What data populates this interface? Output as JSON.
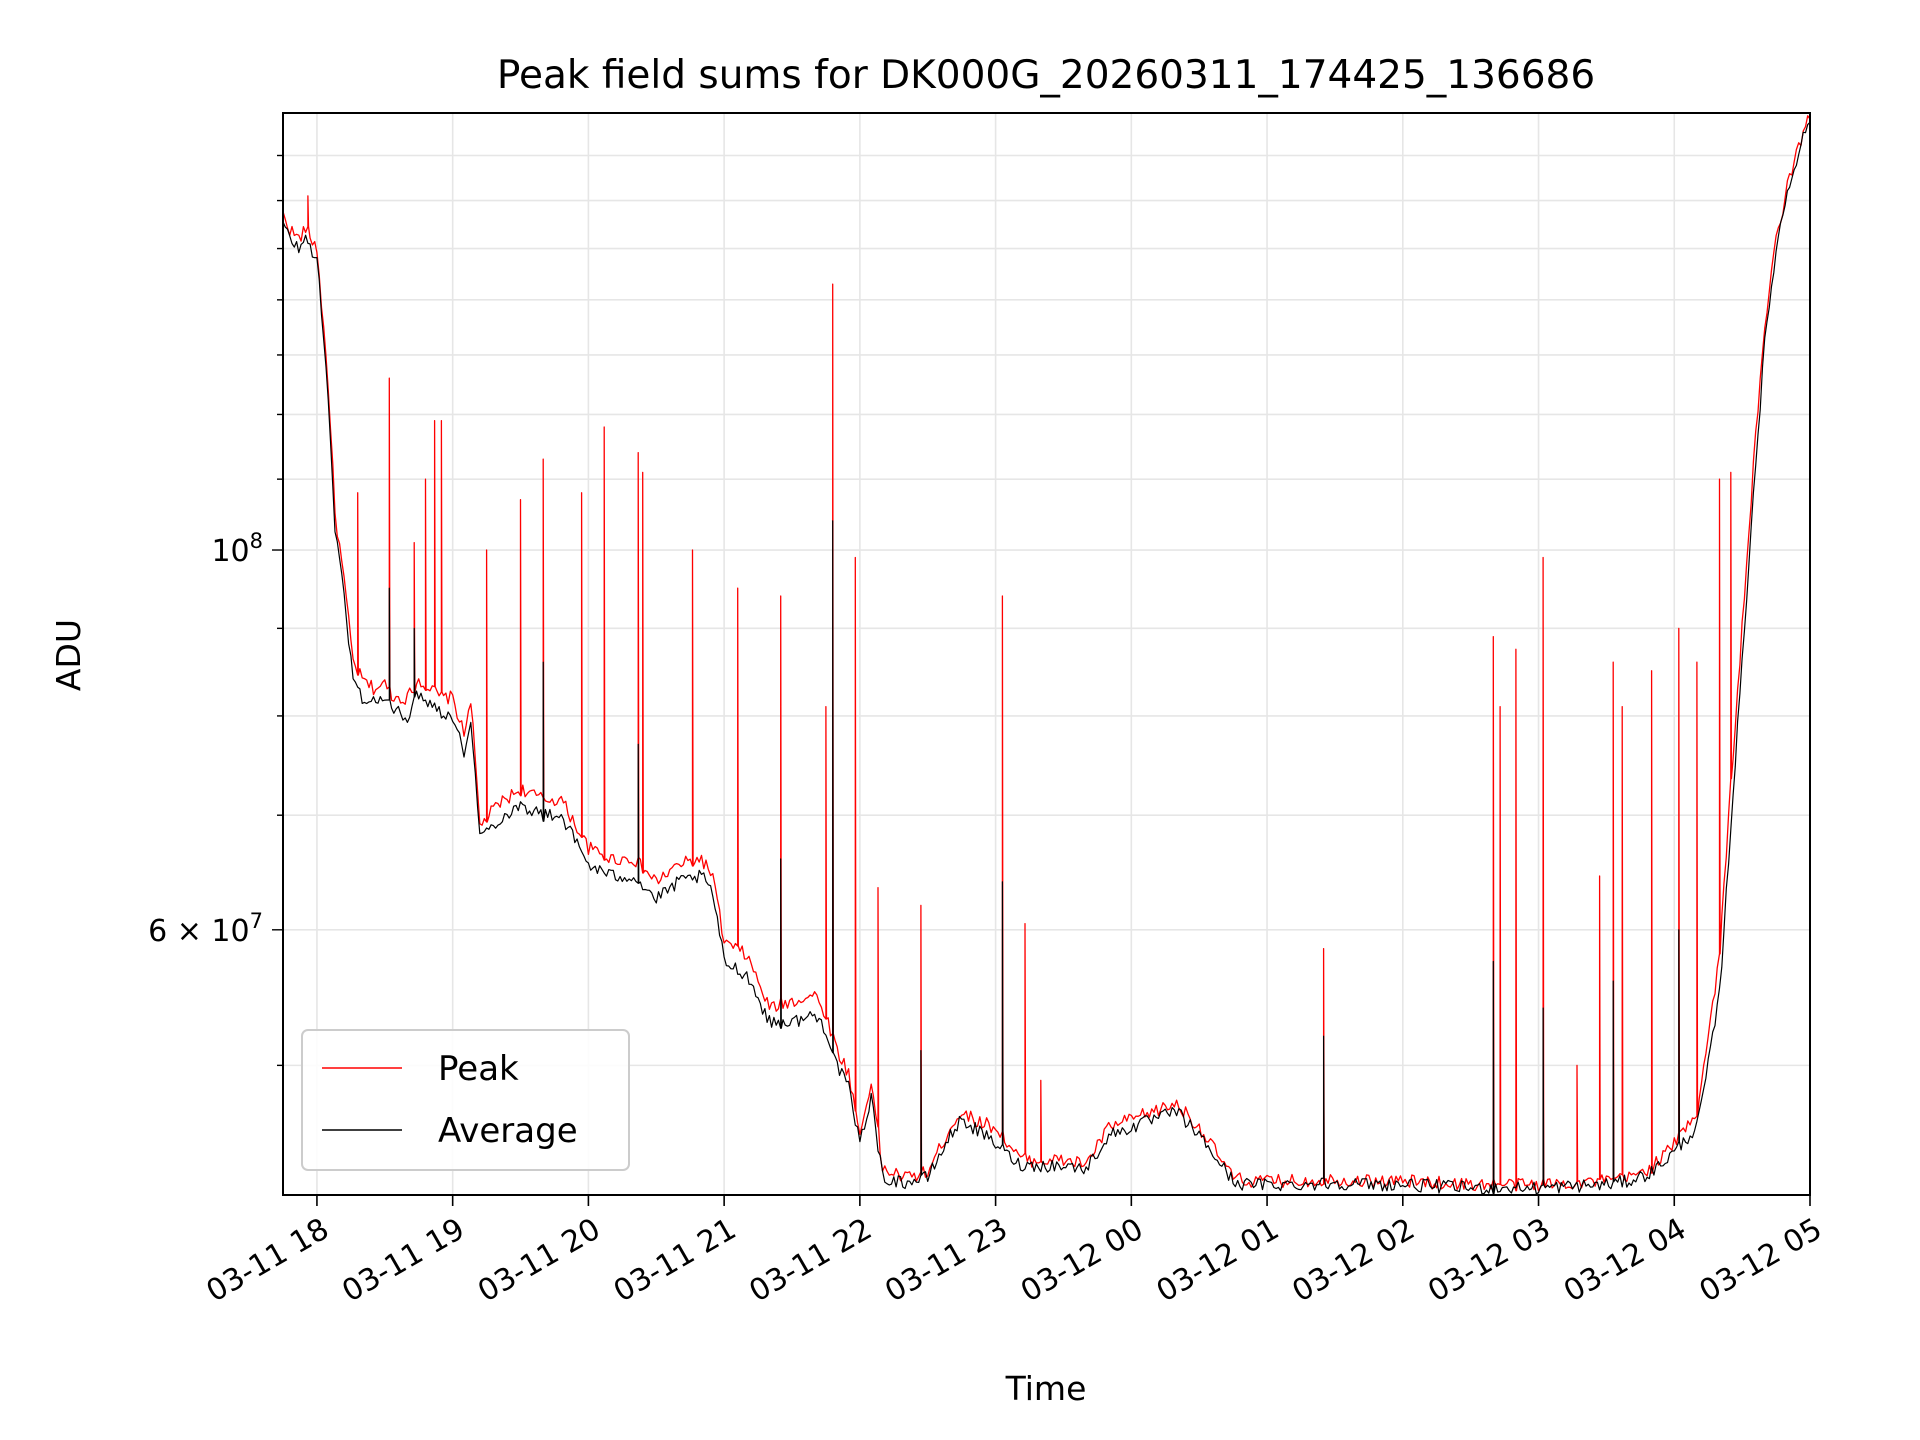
{
  "chart_data": {
    "type": "line",
    "title": "Peak field sums for DK000G_20260311_174425_136686",
    "xlabel": "Time",
    "ylabel": "ADU",
    "yscale": "log",
    "grid": true,
    "legend_position": "lower-left",
    "x_range": [
      "03-11 17:45",
      "03-12 05:00"
    ],
    "y_range": [
      42000000,
      180000000
    ],
    "x_ticks": [
      "03-11 18",
      "03-11 19",
      "03-11 20",
      "03-11 21",
      "03-11 22",
      "03-11 23",
      "03-12 00",
      "03-12 01",
      "03-12 02",
      "03-12 03",
      "03-12 04",
      "03-12 05"
    ],
    "y_ticks": [
      {
        "value": 100000000,
        "base": "10",
        "exp": "8"
      },
      {
        "value": 60000000,
        "mantissa": "6",
        "times": "×",
        "base": "10",
        "exp": "7"
      }
    ],
    "series": [
      {
        "name": "Peak",
        "color": "#ff0000",
        "x": [
          "03-11 17:45",
          "03-11 17:48",
          "03-11 17:52",
          "03-11 17:55",
          "03-11 18:00",
          "03-11 18:05",
          "03-11 18:08",
          "03-11 18:12",
          "03-11 18:16",
          "03-11 18:20",
          "03-11 18:25",
          "03-11 18:30",
          "03-11 18:34",
          "03-11 18:40",
          "03-11 18:45",
          "03-11 18:50",
          "03-11 18:55",
          "03-11 19:00",
          "03-11 19:05",
          "03-11 19:08",
          "03-11 19:12",
          "03-11 19:20",
          "03-11 19:30",
          "03-11 19:40",
          "03-11 19:48",
          "03-11 20:00",
          "03-11 20:10",
          "03-11 20:20",
          "03-11 20:30",
          "03-11 20:40",
          "03-11 20:50",
          "03-11 20:55",
          "03-11 21:00",
          "03-11 21:10",
          "03-11 21:20",
          "03-11 21:30",
          "03-11 21:40",
          "03-11 21:45",
          "03-11 21:50",
          "03-11 21:55",
          "03-11 22:00",
          "03-11 22:05",
          "03-11 22:10",
          "03-11 22:20",
          "03-11 22:30",
          "03-11 22:40",
          "03-11 22:45",
          "03-11 22:50",
          "03-11 23:00",
          "03-11 23:10",
          "03-11 23:15",
          "03-11 23:20",
          "03-11 23:30",
          "03-11 23:40",
          "03-11 23:50",
          "03-12 00:00",
          "03-12 00:10",
          "03-12 00:20",
          "03-12 00:30",
          "03-12 00:40",
          "03-12 00:45",
          "03-12 00:50",
          "03-12 01:00",
          "03-12 01:15",
          "03-12 01:30",
          "03-12 01:45",
          "03-12 02:00",
          "03-12 02:15",
          "03-12 02:30",
          "03-12 02:45",
          "03-12 03:00",
          "03-12 03:15",
          "03-12 03:30",
          "03-12 03:40",
          "03-12 03:50",
          "03-12 04:00",
          "03-12 04:10",
          "03-12 04:15",
          "03-12 04:20",
          "03-12 04:25",
          "03-12 04:30",
          "03-12 04:35",
          "03-12 04:40",
          "03-12 04:45",
          "03-12 04:50",
          "03-12 04:55",
          "03-12 05:00"
        ],
        "y": [
          157000000,
          154000000,
          152000000,
          154000000,
          150000000,
          125000000,
          105000000,
          96000000,
          86000000,
          84000000,
          83000000,
          83500000,
          82000000,
          82000000,
          84000000,
          83000000,
          82000000,
          82000000,
          78000000,
          82000000,
          69000000,
          71000000,
          72500000,
          71500000,
          71500000,
          67000000,
          66000000,
          66000000,
          64000000,
          65500000,
          66000000,
          64500000,
          59000000,
          58000000,
          54000000,
          54500000,
          55000000,
          53500000,
          51000000,
          49500000,
          45500000,
          49000000,
          43500000,
          43000000,
          43300000,
          46000000,
          47000000,
          46500000,
          46000000,
          44200000,
          44000000,
          44000000,
          44000000,
          43800000,
          46000000,
          46500000,
          47000000,
          47500000,
          46000000,
          44000000,
          43000000,
          42800000,
          42800000,
          42800000,
          42900000,
          42800000,
          42800000,
          42700000,
          42600000,
          42600000,
          42600000,
          42700000,
          42800000,
          43000000,
          43600000,
          45000000,
          47000000,
          52000000,
          58000000,
          73000000,
          90000000,
          112000000,
          135000000,
          152000000,
          163000000,
          172000000,
          180000000
        ],
        "spikes": [
          {
            "x": "03-11 17:56",
            "y": 161000000
          },
          {
            "x": "03-11 18:18",
            "y": 108000000
          },
          {
            "x": "03-11 18:32",
            "y": 126000000
          },
          {
            "x": "03-11 18:43",
            "y": 101000000
          },
          {
            "x": "03-11 18:48",
            "y": 110000000
          },
          {
            "x": "03-11 18:52",
            "y": 119000000
          },
          {
            "x": "03-11 18:55",
            "y": 119000000
          },
          {
            "x": "03-11 19:15",
            "y": 100000000
          },
          {
            "x": "03-11 19:30",
            "y": 107000000
          },
          {
            "x": "03-11 19:40",
            "y": 113000000
          },
          {
            "x": "03-11 19:57",
            "y": 108000000
          },
          {
            "x": "03-11 20:07",
            "y": 118000000
          },
          {
            "x": "03-11 20:22",
            "y": 114000000
          },
          {
            "x": "03-11 20:24",
            "y": 111000000
          },
          {
            "x": "03-11 20:46",
            "y": 100000000
          },
          {
            "x": "03-11 21:06",
            "y": 95000000
          },
          {
            "x": "03-11 21:25",
            "y": 94000000
          },
          {
            "x": "03-11 21:45",
            "y": 81000000
          },
          {
            "x": "03-11 21:48",
            "y": 143000000
          },
          {
            "x": "03-11 21:58",
            "y": 99000000
          },
          {
            "x": "03-11 22:08",
            "y": 63500000
          },
          {
            "x": "03-11 22:27",
            "y": 62000000
          },
          {
            "x": "03-11 23:03",
            "y": 94000000
          },
          {
            "x": "03-11 23:13",
            "y": 60500000
          },
          {
            "x": "03-11 23:20",
            "y": 49000000
          },
          {
            "x": "03-12 01:25",
            "y": 58500000
          },
          {
            "x": "03-12 02:40",
            "y": 89000000
          },
          {
            "x": "03-12 02:43",
            "y": 81000000
          },
          {
            "x": "03-12 02:50",
            "y": 87500000
          },
          {
            "x": "03-12 03:02",
            "y": 99000000
          },
          {
            "x": "03-12 03:17",
            "y": 50000000
          },
          {
            "x": "03-12 03:27",
            "y": 64500000
          },
          {
            "x": "03-12 03:33",
            "y": 86000000
          },
          {
            "x": "03-12 03:37",
            "y": 81000000
          },
          {
            "x": "03-12 03:50",
            "y": 85000000
          },
          {
            "x": "03-12 04:02",
            "y": 90000000
          },
          {
            "x": "03-12 04:10",
            "y": 86000000
          },
          {
            "x": "03-12 04:20",
            "y": 110000000
          },
          {
            "x": "03-12 04:25",
            "y": 111000000
          }
        ]
      },
      {
        "name": "Average",
        "color": "#000000",
        "x": [
          "03-11 17:45",
          "03-11 17:48",
          "03-11 17:52",
          "03-11 17:55",
          "03-11 18:00",
          "03-11 18:05",
          "03-11 18:08",
          "03-11 18:12",
          "03-11 18:16",
          "03-11 18:20",
          "03-11 18:25",
          "03-11 18:30",
          "03-11 18:34",
          "03-11 18:40",
          "03-11 18:45",
          "03-11 18:50",
          "03-11 18:55",
          "03-11 19:00",
          "03-11 19:05",
          "03-11 19:08",
          "03-11 19:12",
          "03-11 19:20",
          "03-11 19:30",
          "03-11 19:40",
          "03-11 19:48",
          "03-11 20:00",
          "03-11 20:10",
          "03-11 20:20",
          "03-11 20:30",
          "03-11 20:40",
          "03-11 20:50",
          "03-11 20:55",
          "03-11 21:00",
          "03-11 21:10",
          "03-11 21:20",
          "03-11 21:30",
          "03-11 21:40",
          "03-11 21:45",
          "03-11 21:50",
          "03-11 21:55",
          "03-11 22:00",
          "03-11 22:05",
          "03-11 22:10",
          "03-11 22:20",
          "03-11 22:30",
          "03-11 22:40",
          "03-11 22:45",
          "03-11 22:50",
          "03-11 23:00",
          "03-11 23:10",
          "03-11 23:15",
          "03-11 23:20",
          "03-11 23:30",
          "03-11 23:40",
          "03-11 23:50",
          "03-12 00:00",
          "03-12 00:10",
          "03-12 00:20",
          "03-12 00:30",
          "03-12 00:40",
          "03-12 00:45",
          "03-12 00:50",
          "03-12 01:00",
          "03-12 01:15",
          "03-12 01:30",
          "03-12 01:45",
          "03-12 02:00",
          "03-12 02:15",
          "03-12 02:30",
          "03-12 02:45",
          "03-12 03:00",
          "03-12 03:15",
          "03-12 03:30",
          "03-12 03:40",
          "03-12 03:50",
          "03-12 04:00",
          "03-12 04:10",
          "03-12 04:15",
          "03-12 04:20",
          "03-12 04:25",
          "03-12 04:30",
          "03-12 04:35",
          "03-12 04:40",
          "03-12 04:45",
          "03-12 04:50",
          "03-12 04:55",
          "03-12 05:00"
        ],
        "y": [
          155000000,
          152000000,
          150000000,
          152000000,
          148000000,
          123000000,
          103000000,
          94000000,
          84000000,
          82000000,
          81500000,
          82000000,
          80500000,
          80000000,
          82500000,
          81500000,
          80500000,
          80000000,
          76000000,
          80000000,
          68000000,
          69500000,
          71000000,
          70000000,
          70000000,
          65500000,
          64500000,
          64500000,
          62500000,
          64000000,
          64500000,
          63000000,
          57500000,
          56500000,
          53000000,
          53000000,
          53500000,
          52500000,
          50000000,
          48500000,
          45000000,
          48000000,
          43000000,
          42700000,
          43000000,
          45500000,
          46500000,
          46000000,
          45000000,
          43800000,
          43700000,
          43700000,
          43700000,
          43500000,
          45500000,
          46000000,
          46500000,
          47000000,
          45500000,
          43700000,
          42800000,
          42600000,
          42600000,
          42600000,
          42700000,
          42600000,
          42600000,
          42500000,
          42400000,
          42400000,
          42400000,
          42500000,
          42600000,
          42800000,
          43300000,
          44500000,
          46000000,
          50000000,
          55000000,
          69000000,
          86000000,
          108000000,
          132000000,
          150000000,
          162000000,
          171000000,
          179000000
        ],
        "spikes": [
          {
            "x": "03-11 18:32",
            "y": 95000000
          },
          {
            "x": "03-11 18:43",
            "y": 90000000
          },
          {
            "x": "03-11 19:40",
            "y": 86000000
          },
          {
            "x": "03-11 20:22",
            "y": 77000000
          },
          {
            "x": "03-11 21:25",
            "y": 66000000
          },
          {
            "x": "03-11 21:48",
            "y": 104000000
          },
          {
            "x": "03-11 22:27",
            "y": 51000000
          },
          {
            "x": "03-11 23:03",
            "y": 64000000
          },
          {
            "x": "03-12 01:25",
            "y": 52000000
          },
          {
            "x": "03-12 02:40",
            "y": 57500000
          },
          {
            "x": "03-12 03:02",
            "y": 54000000
          },
          {
            "x": "03-12 03:33",
            "y": 56000000
          },
          {
            "x": "03-12 04:02",
            "y": 60000000
          }
        ]
      }
    ]
  }
}
